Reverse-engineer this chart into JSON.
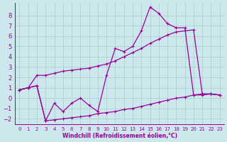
{
  "xlabel": "Windchill (Refroidissement éolien,°C)",
  "background_color": "#cce8ec",
  "grid_color": "#aacccc",
  "line_color": "#990099",
  "xlim": [
    -0.5,
    23.5
  ],
  "ylim": [
    -2.5,
    9.2
  ],
  "yticks": [
    -2,
    -1,
    0,
    1,
    2,
    3,
    4,
    5,
    6,
    7,
    8
  ],
  "xticks": [
    0,
    1,
    2,
    3,
    4,
    5,
    6,
    7,
    8,
    9,
    10,
    11,
    12,
    13,
    14,
    15,
    16,
    17,
    18,
    19,
    20,
    21,
    22,
    23
  ],
  "series1_x": [
    0,
    2,
    3,
    4,
    5,
    6,
    7,
    8,
    9,
    10,
    11,
    12,
    13,
    14,
    15,
    16,
    17,
    18,
    19,
    20,
    21,
    22,
    23
  ],
  "series1_y": [
    0.8,
    1.2,
    -2.2,
    -0.5,
    -1.3,
    -0.5,
    0.0,
    -0.7,
    -1.3,
    2.2,
    4.8,
    4.5,
    5.0,
    6.5,
    8.8,
    8.2,
    7.2,
    6.8,
    6.8,
    0.3,
    0.3,
    0.4,
    0.3
  ],
  "series2_x": [
    0,
    1,
    2,
    3,
    4,
    5,
    6,
    7,
    8,
    9,
    10,
    11,
    12,
    13,
    14,
    15,
    16,
    17,
    18,
    19,
    20,
    21,
    22,
    23
  ],
  "series2_y": [
    0.8,
    1.0,
    2.2,
    2.2,
    2.4,
    2.6,
    2.7,
    2.8,
    2.9,
    3.1,
    3.3,
    3.6,
    4.0,
    4.4,
    4.8,
    5.3,
    5.7,
    6.1,
    6.4,
    6.5,
    6.6,
    0.4,
    0.4,
    0.3
  ],
  "series3_x": [
    0,
    1,
    2,
    3,
    4,
    5,
    6,
    7,
    8,
    9,
    10,
    11,
    12,
    13,
    14,
    15,
    16,
    17,
    18,
    19,
    20,
    21,
    22,
    23
  ],
  "series3_y": [
    0.8,
    1.0,
    1.2,
    -2.2,
    -2.1,
    -2.0,
    -1.9,
    -1.8,
    -1.7,
    -1.5,
    -1.4,
    -1.3,
    -1.1,
    -1.0,
    -0.8,
    -0.6,
    -0.4,
    -0.2,
    0.0,
    0.1,
    0.3,
    0.4,
    0.4,
    0.3
  ],
  "markersize": 2.5,
  "linewidth": 0.9
}
